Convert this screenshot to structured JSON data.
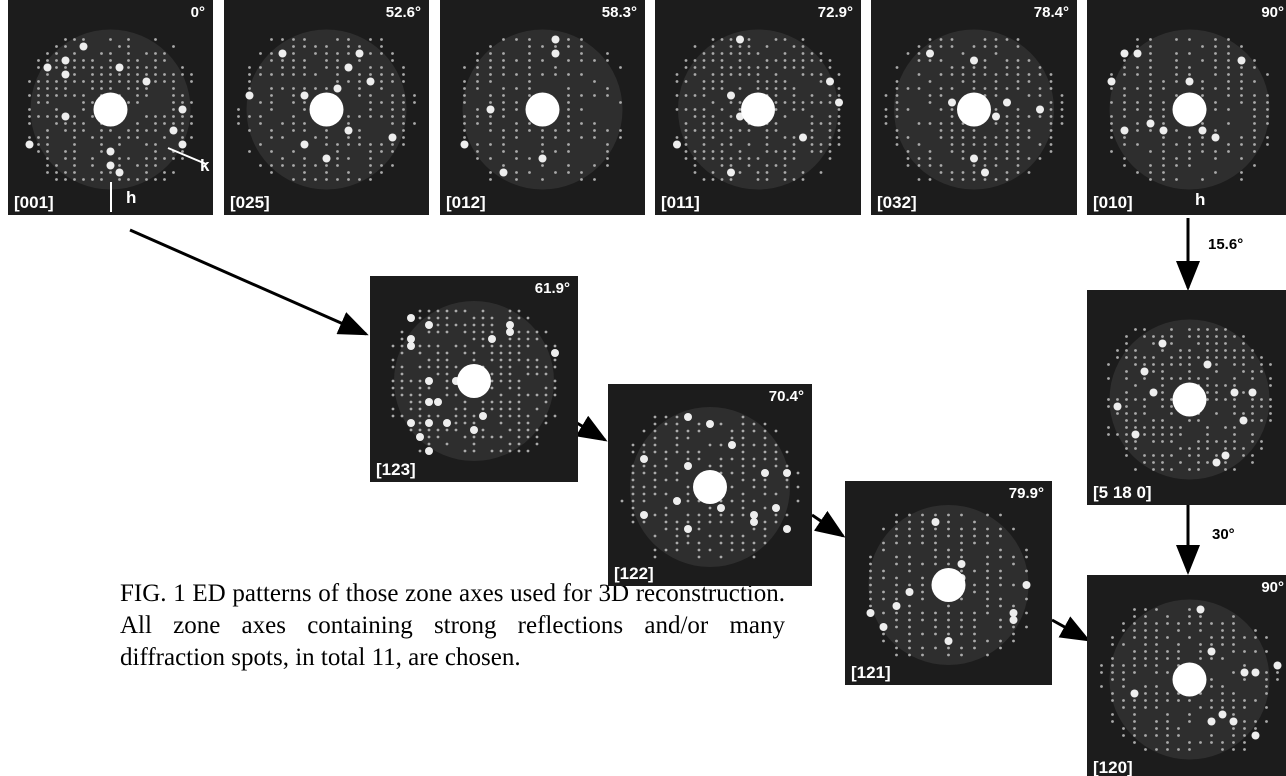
{
  "panels": [
    {
      "zone": "[001]",
      "angle": "0°"
    },
    {
      "zone": "[025]",
      "angle": "52.6°"
    },
    {
      "zone": "[012]",
      "angle": "58.3°"
    },
    {
      "zone": "[011]",
      "angle": "72.9°"
    },
    {
      "zone": "[032]",
      "angle": "78.4°"
    },
    {
      "zone": "[010]",
      "angle": "90°"
    },
    {
      "zone": "[123]",
      "angle": "61.9°"
    },
    {
      "zone": "[122]",
      "angle": "70.4°"
    },
    {
      "zone": "[121]",
      "angle": "79.9°"
    },
    {
      "zone": "[5 18 0]"
    },
    {
      "zone": "[120]",
      "angle": "90°"
    }
  ],
  "axis_labels": {
    "h_001": "h",
    "k_001": "k",
    "h_010": "h"
  },
  "rotations": [
    "15.6°",
    "30°"
  ],
  "caption": "FIG. 1 ED patterns of those zone axes used for 3D reconstruction. All zone axes containing strong reflections and/or many diffraction spots, in total 11, are chosen."
}
